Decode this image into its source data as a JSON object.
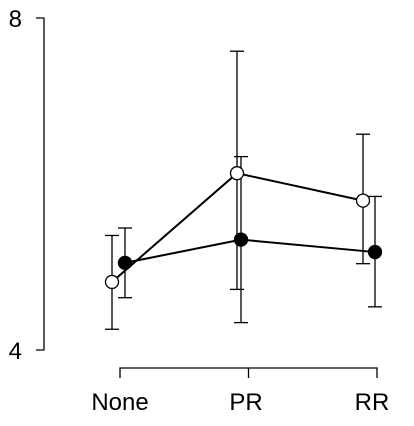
{
  "chart_data": {
    "type": "line",
    "categories": [
      "None",
      "PR",
      "RR"
    ],
    "ylim": [
      4,
      8
    ],
    "yticks": [
      4,
      8
    ],
    "ytick_labels": [
      "4",
      "8"
    ],
    "grid": false,
    "legend": "none",
    "series": [
      {
        "marker": "filled-circle",
        "color": "#000000",
        "values": [
          5.05,
          5.33,
          5.18
        ],
        "error_low": [
          4.63,
          4.33,
          4.52
        ],
        "error_high": [
          5.47,
          6.33,
          5.85
        ]
      },
      {
        "marker": "open-circle",
        "color": "#000000",
        "values": [
          4.82,
          6.13,
          5.8
        ],
        "error_low": [
          4.25,
          4.73,
          5.04
        ],
        "error_high": [
          5.38,
          7.6,
          6.6
        ]
      }
    ]
  }
}
